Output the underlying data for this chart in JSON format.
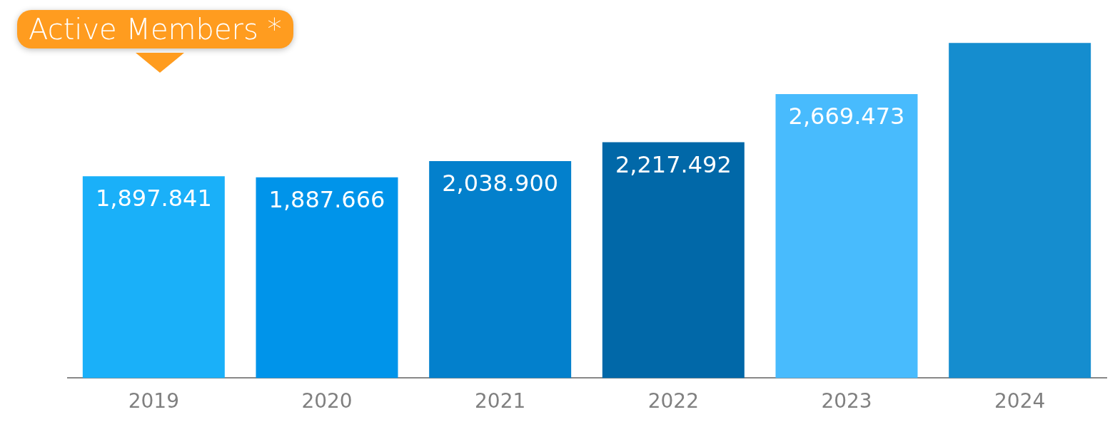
{
  "chart_data": {
    "type": "bar",
    "title": "Active Members *",
    "categories": [
      "2019",
      "2020",
      "2021",
      "2022",
      "2023",
      "2024"
    ],
    "values": [
      1897.841,
      1887.666,
      2038.9,
      2217.492,
      2669.473,
      3150
    ],
    "value_labels": [
      "1,897.841",
      "1,887.666",
      "2,038.900",
      "2,217.492",
      "2,669.473",
      null
    ],
    "colors": [
      "#1ab0f9",
      "#0094ea",
      "#0380cc",
      "#0168a8",
      "#48bbfd",
      "#158dcf"
    ],
    "tick_labels": "x",
    "grid": false,
    "legend": false
  }
}
